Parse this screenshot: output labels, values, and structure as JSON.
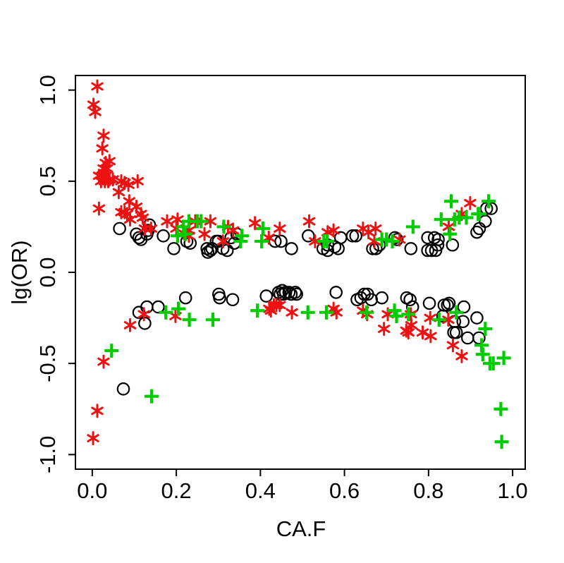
{
  "figure": {
    "background": "#ffffff",
    "axis_color": "#000000"
  },
  "chart_data": {
    "type": "scatter",
    "title": "",
    "xlabel": "CA.F",
    "ylabel": "lg(OR)",
    "xlim": [
      -0.04,
      1.03
    ],
    "ylim": [
      -1.08,
      1.08
    ],
    "grid": false,
    "legend": null,
    "x_ticks": [
      0.0,
      0.2,
      0.4,
      0.6,
      0.8,
      1.0
    ],
    "x_tick_labels": [
      "0.0",
      "0.2",
      "0.4",
      "0.6",
      "0.8",
      "1.0"
    ],
    "y_ticks": [
      -1.0,
      -0.5,
      0.0,
      0.5,
      1.0
    ],
    "y_tick_labels": [
      "-1.0",
      "-0.5",
      "0.0",
      "0.5",
      "1.0"
    ],
    "series": [
      {
        "name": "black-open-circles",
        "marker": "open-circle",
        "color": "#000000",
        "points": [
          [
            0.065,
            0.24
          ],
          [
            0.105,
            0.21
          ],
          [
            0.111,
            0.19
          ],
          [
            0.116,
            0.18
          ],
          [
            0.13,
            0.21
          ],
          [
            0.133,
            0.23
          ],
          [
            0.136,
            0.26
          ],
          [
            0.169,
            0.2
          ],
          [
            0.194,
            0.13
          ],
          [
            0.225,
            0.17
          ],
          [
            0.233,
            0.16
          ],
          [
            0.273,
            0.13
          ],
          [
            0.275,
            0.11
          ],
          [
            0.281,
            0.12
          ],
          [
            0.285,
            0.13
          ],
          [
            0.295,
            0.17
          ],
          [
            0.3,
            0.17
          ],
          [
            0.311,
            0.13
          ],
          [
            0.321,
            0.12
          ],
          [
            0.33,
            0.19
          ],
          [
            0.338,
            0.16
          ],
          [
            0.344,
            0.21
          ],
          [
            0.435,
            0.17
          ],
          [
            0.449,
            0.17
          ],
          [
            0.474,
            0.13
          ],
          [
            0.514,
            0.2
          ],
          [
            0.549,
            0.13
          ],
          [
            0.56,
            0.15
          ],
          [
            0.56,
            0.12
          ],
          [
            0.577,
            0.14
          ],
          [
            0.585,
            0.13
          ],
          [
            0.591,
            0.19
          ],
          [
            0.619,
            0.2
          ],
          [
            0.627,
            0.2
          ],
          [
            0.667,
            0.13
          ],
          [
            0.675,
            0.13
          ],
          [
            0.683,
            0.15
          ],
          [
            0.72,
            0.19
          ],
          [
            0.725,
            0.18
          ],
          [
            0.758,
            0.13
          ],
          [
            0.798,
            0.19
          ],
          [
            0.814,
            0.19
          ],
          [
            0.823,
            0.18
          ],
          [
            0.798,
            0.12
          ],
          [
            0.807,
            0.12
          ],
          [
            0.817,
            0.12
          ],
          [
            0.822,
            0.15
          ],
          [
            0.857,
            0.15
          ],
          [
            0.915,
            0.22
          ],
          [
            0.921,
            0.24
          ],
          [
            0.935,
            0.28
          ],
          [
            0.938,
            0.35
          ],
          [
            0.949,
            0.35
          ],
          [
            0.111,
            -0.22
          ],
          [
            0.13,
            -0.19
          ],
          [
            0.157,
            -0.19
          ],
          [
            0.125,
            -0.28
          ],
          [
            0.222,
            -0.14
          ],
          [
            0.301,
            -0.12
          ],
          [
            0.303,
            -0.14
          ],
          [
            0.334,
            -0.15
          ],
          [
            0.414,
            -0.13
          ],
          [
            0.443,
            -0.11
          ],
          [
            0.452,
            -0.1
          ],
          [
            0.46,
            -0.11
          ],
          [
            0.468,
            -0.11
          ],
          [
            0.447,
            -0.12
          ],
          [
            0.455,
            -0.12
          ],
          [
            0.473,
            -0.12
          ],
          [
            0.483,
            -0.11
          ],
          [
            0.486,
            -0.12
          ],
          [
            0.58,
            -0.11
          ],
          [
            0.63,
            -0.15
          ],
          [
            0.639,
            -0.14
          ],
          [
            0.647,
            -0.12
          ],
          [
            0.655,
            -0.12
          ],
          [
            0.664,
            -0.15
          ],
          [
            0.689,
            -0.14
          ],
          [
            0.748,
            -0.14
          ],
          [
            0.756,
            -0.15
          ],
          [
            0.762,
            -0.19
          ],
          [
            0.802,
            -0.17
          ],
          [
            0.837,
            -0.18
          ],
          [
            0.845,
            -0.18
          ],
          [
            0.849,
            -0.17
          ],
          [
            0.834,
            -0.24
          ],
          [
            0.884,
            -0.19
          ],
          [
            0.862,
            -0.27
          ],
          [
            0.882,
            -0.27
          ],
          [
            0.86,
            -0.33
          ],
          [
            0.866,
            -0.33
          ],
          [
            0.915,
            -0.25
          ],
          [
            0.893,
            -0.36
          ],
          [
            0.92,
            -0.36
          ],
          [
            0.074,
            -0.64
          ]
        ]
      },
      {
        "name": "red-asterisks",
        "marker": "asterisk",
        "color": "#ee1111",
        "points": [
          [
            0.012,
            1.02
          ],
          [
            0.003,
            0.92
          ],
          [
            0.007,
            0.88
          ],
          [
            0.027,
            0.75
          ],
          [
            0.024,
            0.68
          ],
          [
            0.032,
            0.6
          ],
          [
            0.041,
            0.61
          ],
          [
            0.027,
            0.57
          ],
          [
            0.035,
            0.57
          ],
          [
            0.016,
            0.53
          ],
          [
            0.024,
            0.53
          ],
          [
            0.032,
            0.53
          ],
          [
            0.041,
            0.51
          ],
          [
            0.021,
            0.5
          ],
          [
            0.03,
            0.5
          ],
          [
            0.038,
            0.5
          ],
          [
            0.049,
            0.51
          ],
          [
            0.069,
            0.5
          ],
          [
            0.077,
            0.49
          ],
          [
            0.086,
            0.48
          ],
          [
            0.108,
            0.5
          ],
          [
            0.063,
            0.44
          ],
          [
            0.016,
            0.35
          ],
          [
            0.069,
            0.33
          ],
          [
            0.077,
            0.33
          ],
          [
            0.083,
            0.32
          ],
          [
            0.105,
            0.36
          ],
          [
            0.116,
            0.32
          ],
          [
            0.09,
            0.29
          ],
          [
            0.088,
            0.39
          ],
          [
            0.12,
            0.3
          ],
          [
            0.125,
            0.24
          ],
          [
            0.14,
            0.24
          ],
          [
            0.178,
            0.28
          ],
          [
            0.203,
            0.29
          ],
          [
            0.2,
            0.24
          ],
          [
            0.23,
            0.23
          ],
          [
            0.23,
            0.2
          ],
          [
            0.245,
            0.28
          ],
          [
            0.267,
            0.21
          ],
          [
            0.281,
            0.28
          ],
          [
            0.311,
            0.17
          ],
          [
            0.323,
            0.25
          ],
          [
            0.335,
            0.23
          ],
          [
            0.387,
            0.27
          ],
          [
            0.42,
            0.19
          ],
          [
            0.446,
            0.24
          ],
          [
            0.516,
            0.28
          ],
          [
            0.53,
            0.17
          ],
          [
            0.56,
            0.22
          ],
          [
            0.574,
            0.23
          ],
          [
            0.644,
            0.24
          ],
          [
            0.657,
            0.22
          ],
          [
            0.674,
            0.24
          ],
          [
            0.671,
            0.17
          ],
          [
            0.731,
            0.18
          ],
          [
            0.848,
            0.25
          ],
          [
            0.879,
            0.32
          ],
          [
            0.899,
            0.38
          ],
          [
            0.123,
            -0.23
          ],
          [
            0.09,
            -0.29
          ],
          [
            0.198,
            -0.24
          ],
          [
            0.421,
            -0.2
          ],
          [
            0.425,
            -0.21
          ],
          [
            0.432,
            -0.18
          ],
          [
            0.438,
            -0.18
          ],
          [
            0.446,
            -0.18
          ],
          [
            0.475,
            -0.22
          ],
          [
            0.574,
            -0.2
          ],
          [
            0.581,
            -0.22
          ],
          [
            0.644,
            -0.21
          ],
          [
            0.654,
            -0.23
          ],
          [
            0.703,
            -0.23
          ],
          [
            0.694,
            -0.31
          ],
          [
            0.747,
            -0.32
          ],
          [
            0.758,
            -0.23
          ],
          [
            0.759,
            -0.29
          ],
          [
            0.752,
            -0.33
          ],
          [
            0.786,
            -0.33
          ],
          [
            0.805,
            -0.35
          ],
          [
            0.804,
            -0.25
          ],
          [
            0.847,
            -0.26
          ],
          [
            0.858,
            -0.4
          ],
          [
            0.879,
            -0.46
          ],
          [
            0.027,
            -0.49
          ],
          [
            0.012,
            -0.76
          ],
          [
            0.002,
            -0.91
          ]
        ]
      },
      {
        "name": "green-plus-signs",
        "marker": "plus",
        "color": "#00cc00",
        "points": [
          [
            0.217,
            0.25
          ],
          [
            0.203,
            0.2
          ],
          [
            0.221,
            0.21
          ],
          [
            0.23,
            0.28
          ],
          [
            0.25,
            0.28
          ],
          [
            0.259,
            0.28
          ],
          [
            0.313,
            0.25
          ],
          [
            0.353,
            0.17
          ],
          [
            0.356,
            0.2
          ],
          [
            0.403,
            0.17
          ],
          [
            0.406,
            0.24
          ],
          [
            0.551,
            0.17
          ],
          [
            0.559,
            0.17
          ],
          [
            0.689,
            0.18
          ],
          [
            0.7,
            0.18
          ],
          [
            0.714,
            0.17
          ],
          [
            0.763,
            0.25
          ],
          [
            0.83,
            0.29
          ],
          [
            0.851,
            0.21
          ],
          [
            0.854,
            0.39
          ],
          [
            0.862,
            0.29
          ],
          [
            0.873,
            0.3
          ],
          [
            0.89,
            0.3
          ],
          [
            0.918,
            0.32
          ],
          [
            0.921,
            0.32
          ],
          [
            0.943,
            0.39
          ],
          [
            0.046,
            -0.43
          ],
          [
            0.175,
            -0.22
          ],
          [
            0.205,
            -0.2
          ],
          [
            0.231,
            -0.26
          ],
          [
            0.287,
            -0.26
          ],
          [
            0.393,
            -0.21
          ],
          [
            0.513,
            -0.22
          ],
          [
            0.557,
            -0.22
          ],
          [
            0.653,
            -0.22
          ],
          [
            0.719,
            -0.21
          ],
          [
            0.724,
            -0.24
          ],
          [
            0.752,
            -0.23
          ],
          [
            0.825,
            -0.26
          ],
          [
            0.866,
            -0.22
          ],
          [
            0.929,
            -0.45
          ],
          [
            0.935,
            -0.31
          ],
          [
            0.926,
            -0.4
          ],
          [
            0.946,
            -0.5
          ],
          [
            0.954,
            -0.5
          ],
          [
            0.979,
            -0.47
          ],
          [
            0.141,
            -0.68
          ],
          [
            0.972,
            -0.75
          ],
          [
            0.974,
            -0.93
          ]
        ]
      }
    ]
  }
}
